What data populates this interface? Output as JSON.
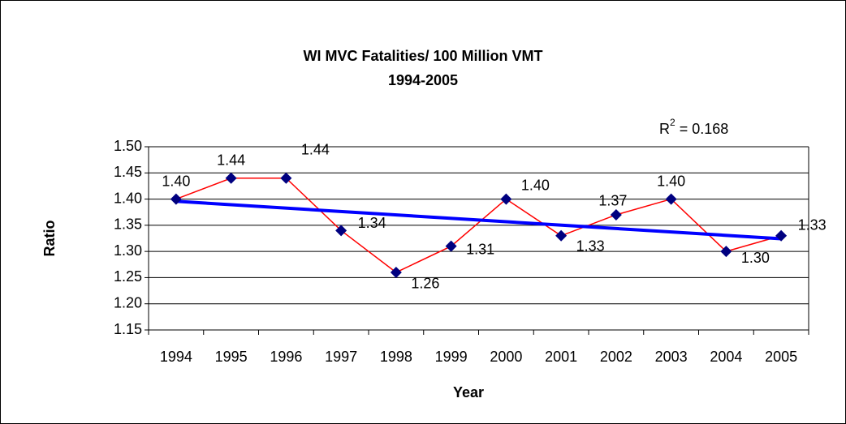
{
  "chart_data": {
    "type": "line",
    "title": [
      "WI MVC Fatalities/ 100 Million VMT",
      "1994-2005"
    ],
    "annotation": {
      "base": "R",
      "superscript": "2",
      "text": " = 0.168"
    },
    "x_label": "Year",
    "y_label": "Ratio",
    "categories": [
      "1994",
      "1995",
      "1996",
      "1997",
      "1998",
      "1999",
      "2000",
      "2001",
      "2002",
      "2003",
      "2004",
      "2005"
    ],
    "series": [
      {
        "name": "Ratio",
        "color": "#ff0000",
        "marker_color": "#000080",
        "values": [
          1.4,
          1.44,
          1.44,
          1.34,
          1.26,
          1.31,
          1.4,
          1.33,
          1.37,
          1.4,
          1.3,
          1.33
        ],
        "value_labels": [
          "1.40",
          "1.44",
          "1.44",
          "1.34",
          "1.26",
          "1.31",
          "1.40",
          "1.33",
          "1.37",
          "1.40",
          "1.30",
          "1.33"
        ]
      }
    ],
    "trendline": {
      "type": "linear",
      "color": "#0000ff"
    },
    "ylim": [
      1.15,
      1.5
    ],
    "yticks": [
      {
        "value": 1.15,
        "label": "1.15"
      },
      {
        "value": 1.2,
        "label": "1.20"
      },
      {
        "value": 1.25,
        "label": "1.25"
      },
      {
        "value": 1.3,
        "label": "1.30"
      },
      {
        "value": 1.35,
        "label": "1.35"
      },
      {
        "value": 1.4,
        "label": "1.40"
      },
      {
        "value": 1.45,
        "label": "1.45"
      },
      {
        "value": 1.5,
        "label": "1.50"
      }
    ],
    "grid": true
  }
}
